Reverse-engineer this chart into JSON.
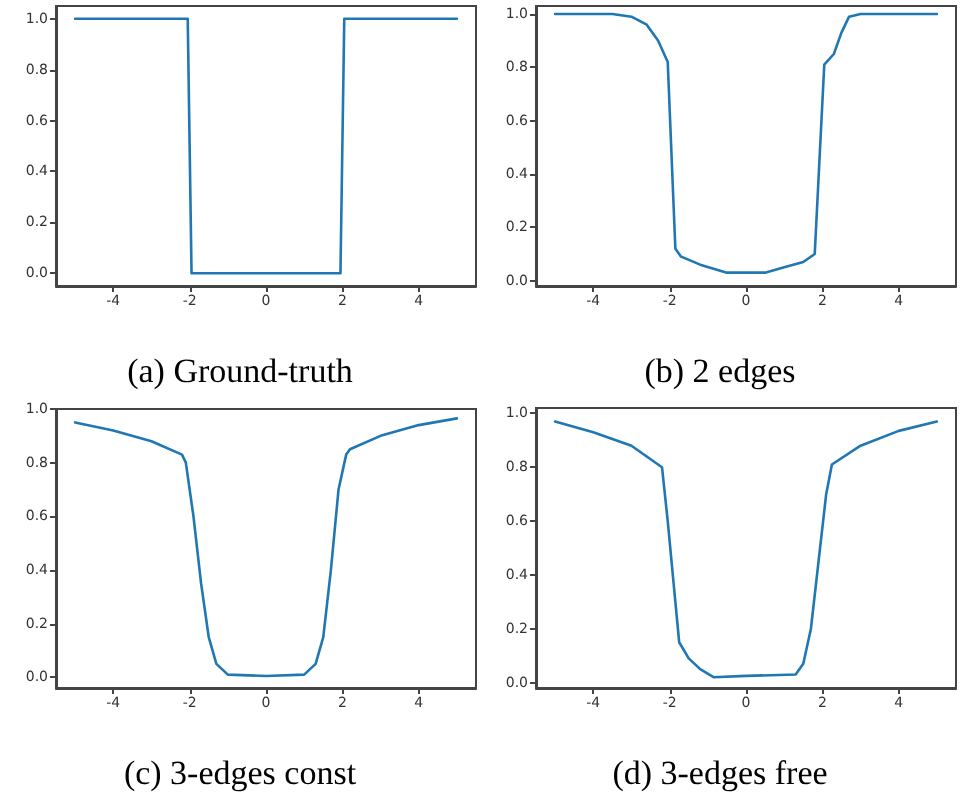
{
  "chart_data": [
    {
      "type": "line",
      "title": "(a) Ground-truth",
      "x": [
        -5,
        -2.05,
        -1.95,
        1.95,
        2.05,
        5
      ],
      "series": [
        {
          "color": "#1f77b4",
          "values": [
            1,
            1,
            0,
            0,
            1,
            1
          ]
        }
      ],
      "xlim": [
        -5.5,
        5.5
      ],
      "ylim": [
        -0.05,
        1.05
      ],
      "xticks": [
        -4,
        -2,
        0,
        2,
        4
      ],
      "yticks": [
        {
          "value": 0,
          "label": "0.0"
        },
        {
          "value": 0.2,
          "label": "0.2"
        },
        {
          "value": 0.4,
          "label": "0.4"
        },
        {
          "value": 0.6,
          "label": "0.6"
        },
        {
          "value": 0.8,
          "label": "0.8"
        },
        {
          "value": 1,
          "label": "1.0"
        }
      ]
    },
    {
      "type": "line",
      "title": "(b) 2 edges",
      "x": [
        -5,
        -3.5,
        -3,
        -2.6,
        -2.3,
        -2.05,
        -1.85,
        -1.7,
        -1.2,
        -0.5,
        0,
        0.5,
        1,
        1.5,
        1.8,
        2.05,
        2.3,
        2.5,
        2.7,
        3,
        5
      ],
      "series": [
        {
          "color": "#1f77b4",
          "values": [
            1,
            1,
            0.99,
            0.96,
            0.9,
            0.82,
            0.12,
            0.09,
            0.06,
            0.03,
            0.03,
            0.03,
            0.05,
            0.07,
            0.1,
            0.81,
            0.85,
            0.93,
            0.99,
            1,
            1
          ]
        }
      ],
      "xlim": [
        -5.5,
        5.5
      ],
      "ylim": [
        -0.02,
        1.03
      ],
      "xticks": [
        -4,
        -2,
        0,
        2,
        4
      ],
      "yticks": [
        {
          "value": 0,
          "label": "0.0"
        },
        {
          "value": 0.2,
          "label": "0.2"
        },
        {
          "value": 0.4,
          "label": "0.4"
        },
        {
          "value": 0.6,
          "label": "0.6"
        },
        {
          "value": 0.8,
          "label": "0.8"
        },
        {
          "value": 1,
          "label": "1.0"
        }
      ]
    },
    {
      "type": "line",
      "title": "(c) 3-edges const",
      "x": [
        -5,
        -4,
        -3,
        -2.2,
        -2.1,
        -1.9,
        -1.7,
        -1.5,
        -1.3,
        -1,
        0,
        1,
        1.3,
        1.5,
        1.7,
        1.9,
        2.1,
        2.2,
        3,
        4,
        5
      ],
      "series": [
        {
          "color": "#1f77b4",
          "values": [
            0.95,
            0.92,
            0.88,
            0.83,
            0.8,
            0.6,
            0.35,
            0.15,
            0.05,
            0.01,
            0.005,
            0.01,
            0.05,
            0.15,
            0.4,
            0.7,
            0.83,
            0.85,
            0.9,
            0.94,
            0.965
          ]
        }
      ],
      "xlim": [
        -5.5,
        5.5
      ],
      "ylim": [
        -0.04,
        1.0
      ],
      "xticks": [
        -4,
        -2,
        0,
        2,
        4
      ],
      "yticks": [
        {
          "value": 0,
          "label": "0.0"
        },
        {
          "value": 0.2,
          "label": "0.2"
        },
        {
          "value": 0.4,
          "label": "0.4"
        },
        {
          "value": 0.6,
          "label": "0.6"
        },
        {
          "value": 0.8,
          "label": "0.8"
        },
        {
          "value": 1,
          "label": "1.0"
        }
      ]
    },
    {
      "type": "line",
      "title": "(d) 3-edges free",
      "x": [
        -5,
        -4,
        -3,
        -2.2,
        -2.05,
        -1.85,
        -1.75,
        -1.5,
        -1.2,
        -0.85,
        0,
        1.3,
        1.5,
        1.7,
        1.9,
        2.1,
        2.25,
        3,
        4,
        5
      ],
      "series": [
        {
          "color": "#1f77b4",
          "values": [
            0.97,
            0.93,
            0.88,
            0.8,
            0.6,
            0.3,
            0.15,
            0.09,
            0.05,
            0.02,
            0.025,
            0.03,
            0.07,
            0.2,
            0.45,
            0.7,
            0.81,
            0.88,
            0.935,
            0.97
          ]
        }
      ],
      "xlim": [
        -5.5,
        5.5
      ],
      "ylim": [
        -0.02,
        1.02
      ],
      "xticks": [
        -4,
        -2,
        0,
        2,
        4
      ],
      "yticks": [
        {
          "value": 0,
          "label": "0.0"
        },
        {
          "value": 0.2,
          "label": "0.2"
        },
        {
          "value": 0.4,
          "label": "0.4"
        },
        {
          "value": 0.6,
          "label": "0.6"
        },
        {
          "value": 0.8,
          "label": "0.8"
        },
        {
          "value": 1,
          "label": "1.0"
        }
      ]
    }
  ]
}
